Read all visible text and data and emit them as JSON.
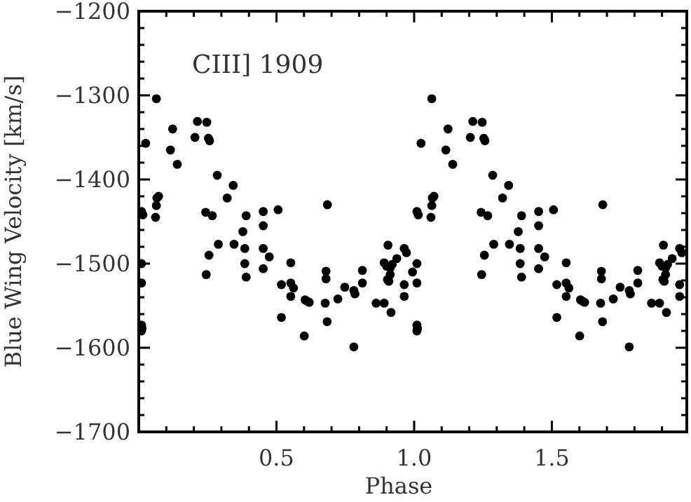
{
  "chart_data": {
    "type": "scatter",
    "xlabel": "Phase",
    "ylabel": "Blue Wing Velocity [km/s]",
    "annotations": [
      "CIII] 1909"
    ],
    "xlim": [
      0,
      1.99
    ],
    "ylim": [
      -1700,
      -1200
    ],
    "xticks": [
      {
        "value": 0.1,
        "label": null
      },
      {
        "value": 0.2,
        "label": null
      },
      {
        "value": 0.3,
        "label": null
      },
      {
        "value": 0.4,
        "label": null
      },
      {
        "value": 0.5,
        "label": "0.5"
      },
      {
        "value": 0.6,
        "label": null
      },
      {
        "value": 0.7,
        "label": null
      },
      {
        "value": 0.8,
        "label": null
      },
      {
        "value": 0.9,
        "label": null
      },
      {
        "value": 1,
        "label": "1.0"
      },
      {
        "value": 1.1,
        "label": null
      },
      {
        "value": 1.2,
        "label": null
      },
      {
        "value": 1.3,
        "label": null
      },
      {
        "value": 1.4,
        "label": null
      },
      {
        "value": 1.5,
        "label": "1.5"
      },
      {
        "value": 1.6,
        "label": null
      },
      {
        "value": 1.7,
        "label": null
      },
      {
        "value": 1.8,
        "label": null
      },
      {
        "value": 1.9,
        "label": null
      }
    ],
    "yticks": [
      {
        "value": -1700,
        "label": "−1700"
      },
      {
        "value": -1680,
        "label": null
      },
      {
        "value": -1660,
        "label": null
      },
      {
        "value": -1640,
        "label": null
      },
      {
        "value": -1620,
        "label": null
      },
      {
        "value": -1600,
        "label": "−1600"
      },
      {
        "value": -1580,
        "label": null
      },
      {
        "value": -1560,
        "label": null
      },
      {
        "value": -1540,
        "label": null
      },
      {
        "value": -1520,
        "label": null
      },
      {
        "value": -1500,
        "label": "−1500"
      },
      {
        "value": -1480,
        "label": null
      },
      {
        "value": -1460,
        "label": null
      },
      {
        "value": -1440,
        "label": null
      },
      {
        "value": -1420,
        "label": null
      },
      {
        "value": -1400,
        "label": "−1400"
      },
      {
        "value": -1380,
        "label": null
      },
      {
        "value": -1360,
        "label": null
      },
      {
        "value": -1340,
        "label": null
      },
      {
        "value": -1320,
        "label": null
      },
      {
        "value": -1300,
        "label": "−1300"
      },
      {
        "value": -1280,
        "label": null
      },
      {
        "value": -1260,
        "label": null
      },
      {
        "value": -1240,
        "label": null
      },
      {
        "value": -1220,
        "label": null
      },
      {
        "value": -1200,
        "label": "−1200"
      }
    ],
    "grid": false,
    "marker": "circle",
    "series": [
      {
        "color": "#000000",
        "x": [
          0.01,
          0.015,
          0.01,
          0.01,
          0.01,
          0.012,
          0.01,
          0.025,
          0.064,
          0.066,
          0.072,
          0.064,
          0.061,
          0.115,
          0.123,
          0.14,
          0.204,
          0.213,
          0.247,
          0.253,
          0.257,
          0.243,
          0.267,
          0.285,
          0.321,
          0.343,
          0.255,
          0.245,
          0.289,
          0.346,
          0.385,
          0.385,
          0.39,
          0.378,
          0.39,
          0.452,
          0.452,
          0.452,
          0.452,
          0.474,
          0.506,
          0.685,
          0.518,
          0.552,
          0.552,
          0.562,
          0.552,
          0.518,
          0.601,
          0.604,
          0.613,
          0.619,
          0.68,
          0.68,
          0.677,
          0.684,
          0.723,
          0.748,
          0.781,
          0.785,
          0.812,
          0.812,
          0.781,
          0.862,
          0.891,
          0.916,
          0.891,
          0.9,
          0.913,
          0.92,
          0.903,
          0.908,
          0.913,
          0.937,
          0.905,
          0.964,
          0.972,
          0.964,
          0.964,
          0.994,
          1.01,
          1.015,
          1.01,
          1.01,
          1.01,
          1.012,
          1.01,
          1.025,
          1.064,
          1.066,
          1.072,
          1.064,
          1.061,
          1.115,
          1.123,
          1.14,
          1.204,
          1.213,
          1.247,
          1.253,
          1.257,
          1.243,
          1.267,
          1.285,
          1.321,
          1.343,
          1.255,
          1.245,
          1.289,
          1.346,
          1.385,
          1.385,
          1.39,
          1.378,
          1.39,
          1.452,
          1.452,
          1.452,
          1.452,
          1.474,
          1.506,
          1.685,
          1.518,
          1.552,
          1.552,
          1.562,
          1.552,
          1.518,
          1.601,
          1.604,
          1.613,
          1.619,
          1.68,
          1.68,
          1.677,
          1.684,
          1.723,
          1.748,
          1.781,
          1.785,
          1.812,
          1.812,
          1.781,
          1.862,
          1.891,
          1.916,
          1.891,
          1.9,
          1.913,
          1.92,
          1.903,
          1.908,
          1.913,
          1.937,
          1.905,
          1.964,
          1.972,
          1.964,
          1.964
        ],
        "values": [
          -1438,
          -1442,
          -1500,
          -1523,
          -1573,
          -1577,
          -1580,
          -1357,
          -1304,
          -1422,
          -1420,
          -1431,
          -1445,
          -1365,
          -1340,
          -1382,
          -1350,
          -1331,
          -1332,
          -1351,
          -1354,
          -1439,
          -1443,
          -1395,
          -1422,
          -1407,
          -1490,
          -1513,
          -1477,
          -1477,
          -1482,
          -1500,
          -1516,
          -1462,
          -1443,
          -1438,
          -1455,
          -1482,
          -1506,
          -1492,
          -1436,
          -1430,
          -1525,
          -1499,
          -1523,
          -1529,
          -1539,
          -1564,
          -1586,
          -1543,
          -1545,
          -1546,
          -1509,
          -1518,
          -1547,
          -1569,
          -1542,
          -1528,
          -1532,
          -1536,
          -1523,
          -1508,
          -1599,
          -1547,
          -1547,
          -1558,
          -1499,
          -1503,
          -1505,
          -1501,
          -1519,
          -1521,
          -1513,
          -1494,
          -1478,
          -1482,
          -1487,
          -1525,
          -1539,
          -1510,
          -1438,
          -1442,
          -1500,
          -1523,
          -1573,
          -1577,
          -1580,
          -1357,
          -1304,
          -1422,
          -1420,
          -1431,
          -1445,
          -1365,
          -1340,
          -1382,
          -1350,
          -1331,
          -1332,
          -1351,
          -1354,
          -1439,
          -1443,
          -1395,
          -1422,
          -1407,
          -1490,
          -1513,
          -1477,
          -1477,
          -1482,
          -1500,
          -1516,
          -1462,
          -1443,
          -1438,
          -1455,
          -1482,
          -1506,
          -1492,
          -1436,
          -1430,
          -1525,
          -1499,
          -1523,
          -1529,
          -1539,
          -1564,
          -1586,
          -1543,
          -1545,
          -1546,
          -1509,
          -1518,
          -1547,
          -1569,
          -1542,
          -1528,
          -1532,
          -1536,
          -1523,
          -1508,
          -1599,
          -1547,
          -1547,
          -1558,
          -1499,
          -1503,
          -1505,
          -1501,
          -1519,
          -1521,
          -1513,
          -1494,
          -1478,
          -1482,
          -1487,
          -1525,
          -1539
        ]
      }
    ]
  }
}
